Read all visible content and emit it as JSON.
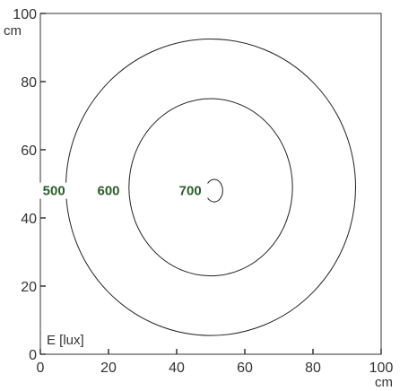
{
  "chart_data": {
    "type": "contour",
    "title": "",
    "legend_label": "E [lux]",
    "x_axis": {
      "range": [
        0,
        100
      ],
      "ticks": [
        0,
        20,
        40,
        60,
        80,
        100
      ],
      "tick_labels": [
        "0",
        "20",
        "40",
        "60",
        "80",
        "100"
      ],
      "unit": "cm"
    },
    "y_axis": {
      "range": [
        0,
        100
      ],
      "ticks": [
        0,
        20,
        40,
        60,
        80,
        100
      ],
      "tick_labels": [
        "0",
        "20",
        "40",
        "60",
        "80",
        "100"
      ],
      "unit": "cm"
    },
    "grid": false,
    "contours": [
      {
        "level": 500,
        "label": "500",
        "center": [
          50,
          49
        ],
        "radius_x": 42.5,
        "radius_y": 43.5,
        "label_at": [
          4,
          48
        ]
      },
      {
        "level": 600,
        "label": "600",
        "center": [
          50,
          49
        ],
        "radius_x": 24,
        "radius_y": 26,
        "label_at": [
          20,
          48
        ]
      },
      {
        "level": 700,
        "label": "700",
        "center": [
          51,
          48
        ],
        "radius_x": 2.5,
        "radius_y": 3.3,
        "label_at": [
          44,
          48
        ],
        "open_side": "left"
      }
    ],
    "colors": {
      "contour_line": "#222222",
      "contour_label": "#2b5e2b",
      "axis": "#333333"
    }
  }
}
